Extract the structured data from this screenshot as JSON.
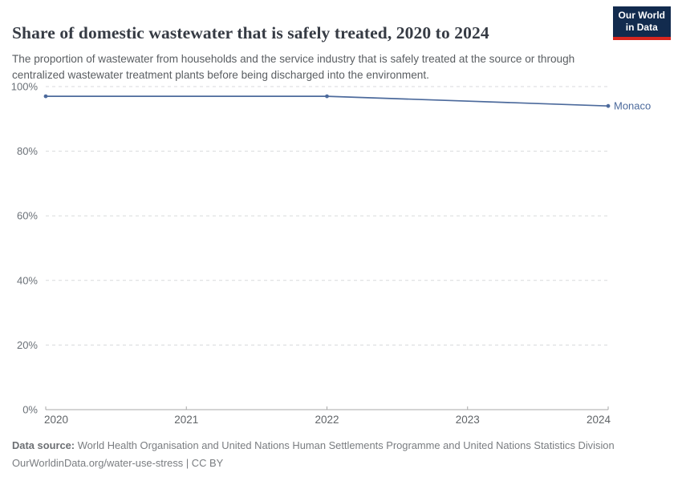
{
  "header": {
    "title": "Share of domestic wastewater that is safely treated, 2020 to 2024",
    "subtitle": "The proportion of wastewater from households and the service industry that is safely treated at the source or through centralized wastewater treatment plants before being discharged into the environment.",
    "logo": {
      "line1": "Our World",
      "line2": "in Data"
    }
  },
  "chart_data": {
    "type": "line",
    "title": "Share of domestic wastewater that is safely treated, 2020 to 2024",
    "xlabel": "",
    "ylabel": "",
    "xlim": [
      2020,
      2024
    ],
    "ylim": [
      0,
      100
    ],
    "x_ticks": [
      2020,
      2021,
      2022,
      2023,
      2024
    ],
    "y_ticks": [
      0,
      20,
      40,
      60,
      80,
      100
    ],
    "y_tick_suffix": "%",
    "grid": "horizontal-dashed",
    "legend_position": "line-end-label",
    "series": [
      {
        "name": "Monaco",
        "color": "#4C6A9C",
        "x": [
          2020,
          2022,
          2024
        ],
        "values": [
          97,
          97,
          94
        ]
      }
    ]
  },
  "footer": {
    "source_label": "Data source:",
    "source_text": "World Health Organisation and United Nations Human Settlements Programme and United Nations Statistics Division",
    "url": "OurWorldinData.org/water-use-stress",
    "separator": "|",
    "license": "CC BY"
  },
  "colors": {
    "series_blue": "#4C6A9C",
    "grid_line": "#d8dadc",
    "axis_line": "#a8a8a8",
    "y_tick_label": "#6b7178",
    "x_tick_label": "#606468",
    "logo_bg": "#122b4e",
    "logo_stripe": "#d8261f",
    "title_text": "#363b44",
    "subtitle_text": "#5a5e62",
    "footer_text": "#7a7d81"
  }
}
